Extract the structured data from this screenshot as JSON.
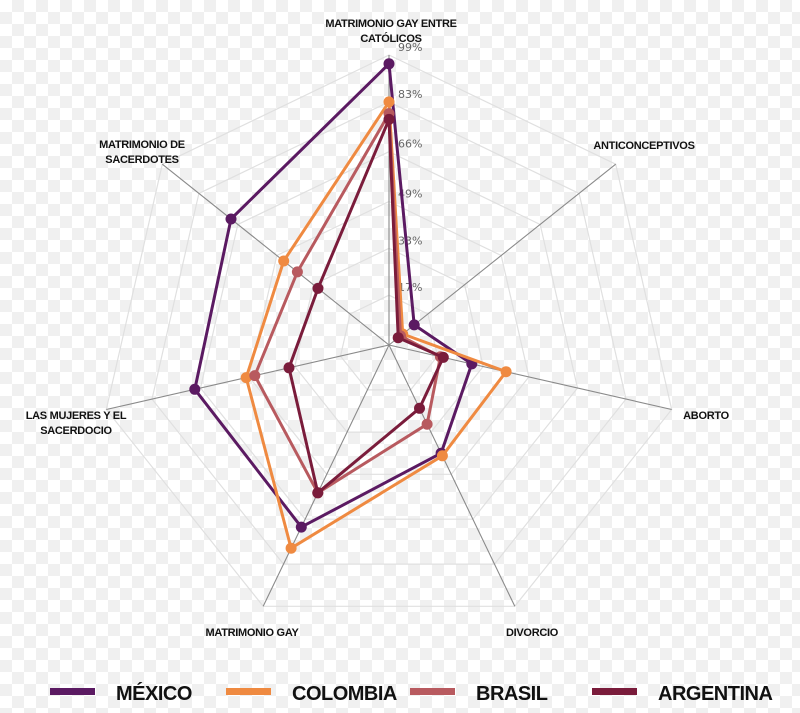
{
  "chart_data": {
    "type": "radar",
    "title": "",
    "axes": [
      "MATRIMONIO GAY ENTRE CATÓLICOS",
      "ANTICONCEPTIVOS",
      "ABORTO",
      "DIVORCIO",
      "MATRIMONIO GAY",
      "LAS MUJERES Y EL SACERDOCIO",
      "MATRIMONIO DE SACERDOTES"
    ],
    "axes_display": [
      [
        "MATRIMONIO GAY ENTRE",
        "CATÓLICOS"
      ],
      [
        "ANTICONCEPTIVOS"
      ],
      [
        "ABORTO"
      ],
      [
        "DIVORCIO"
      ],
      [
        "MATRIMONIO GAY"
      ],
      [
        "LAS MUJERES Y EL",
        "SACERDOCIO"
      ],
      [
        "MATRIMONIO DE",
        "SACERDOTES"
      ]
    ],
    "ticks": [
      17,
      33,
      49,
      66,
      83,
      99
    ],
    "tick_labels": [
      "17%",
      "33%",
      "49%",
      "66%",
      "83%",
      "99%"
    ],
    "rmax": 99,
    "series": [
      {
        "name": "MÉXICO",
        "color": "#5b1a62",
        "values": [
          96,
          11,
          29,
          41,
          69,
          68,
          69
        ]
      },
      {
        "name": "COLOMBIA",
        "color": "#ef8a41",
        "values": [
          83,
          6,
          41,
          42,
          77,
          50,
          46
        ]
      },
      {
        "name": "BRASIL",
        "color": "#b85a5f",
        "values": [
          79,
          5,
          18,
          30,
          56,
          47,
          40
        ]
      },
      {
        "name": "ARGENTINA",
        "color": "#7a1c3b",
        "values": [
          77,
          4,
          19,
          24,
          56,
          35,
          31
        ]
      }
    ]
  },
  "legend": {
    "items": [
      {
        "label": "MÉXICO",
        "color": "#5b1a62"
      },
      {
        "label": "COLOMBIA",
        "color": "#ef8a41"
      },
      {
        "label": "BRASIL",
        "color": "#b85a5f"
      },
      {
        "label": "ARGENTINA",
        "color": "#7a1c3b"
      }
    ]
  }
}
